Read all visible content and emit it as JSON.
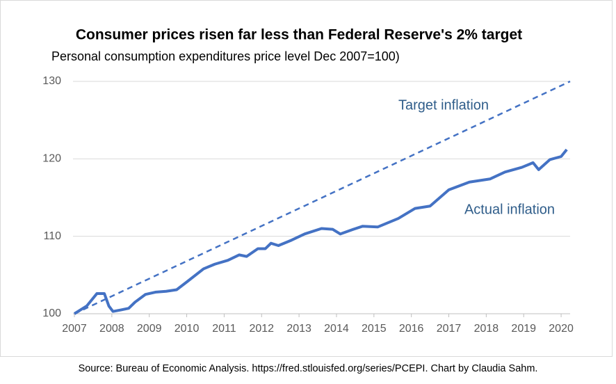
{
  "chart_data": {
    "type": "line",
    "title": "Consumer prices risen far less than Federal Reserve's 2% target",
    "subtitle": "Personal consumption expenditures price level Dec 2007=100)",
    "source": "Source: Bureau of Economic Analysis. https://fred.stlouisfed.org/series/PCEPI. Chart by Claudia Sahm.",
    "xlim": [
      2007,
      2020.24
    ],
    "xticks": [
      2007,
      2008,
      2009,
      2010,
      2011,
      2012,
      2013,
      2014,
      2015,
      2016,
      2017,
      2018,
      2019,
      2020
    ],
    "ylim": [
      100,
      130
    ],
    "yticks": [
      100,
      110,
      120,
      130
    ],
    "grid": true,
    "series": [
      {
        "name": "Target inflation",
        "color": "#4472c4",
        "dashed": true,
        "x": [
          2007.0,
          2020.24
        ],
        "values": [
          100,
          130
        ]
      },
      {
        "name": "Actual inflation",
        "color": "#4472c4",
        "dashed": false,
        "x": [
          2007.0,
          2007.33,
          2007.6,
          2007.8,
          2007.92,
          2008.03,
          2008.25,
          2008.45,
          2008.62,
          2008.9,
          2009.18,
          2009.45,
          2009.73,
          2010.0,
          2010.45,
          2010.75,
          2011.1,
          2011.4,
          2011.6,
          2011.9,
          2012.1,
          2012.25,
          2012.45,
          2012.8,
          2013.15,
          2013.6,
          2013.9,
          2014.1,
          2014.45,
          2014.7,
          2015.1,
          2015.65,
          2016.1,
          2016.5,
          2017.0,
          2017.55,
          2018.1,
          2018.5,
          2018.95,
          2019.25,
          2019.4,
          2019.7,
          2020.0,
          2020.15
        ],
        "values": [
          100,
          101.0,
          102.6,
          102.6,
          101.0,
          100.3,
          100.5,
          100.7,
          101.5,
          102.5,
          102.8,
          102.9,
          103.1,
          104.1,
          105.8,
          106.4,
          106.9,
          107.6,
          107.4,
          108.4,
          108.4,
          109.1,
          108.8,
          109.5,
          110.3,
          111.0,
          110.9,
          110.3,
          110.9,
          111.3,
          111.2,
          112.3,
          113.6,
          113.9,
          116.0,
          117.0,
          117.4,
          118.3,
          118.9,
          119.5,
          118.6,
          119.9,
          120.3,
          121.2
        ]
      }
    ]
  }
}
